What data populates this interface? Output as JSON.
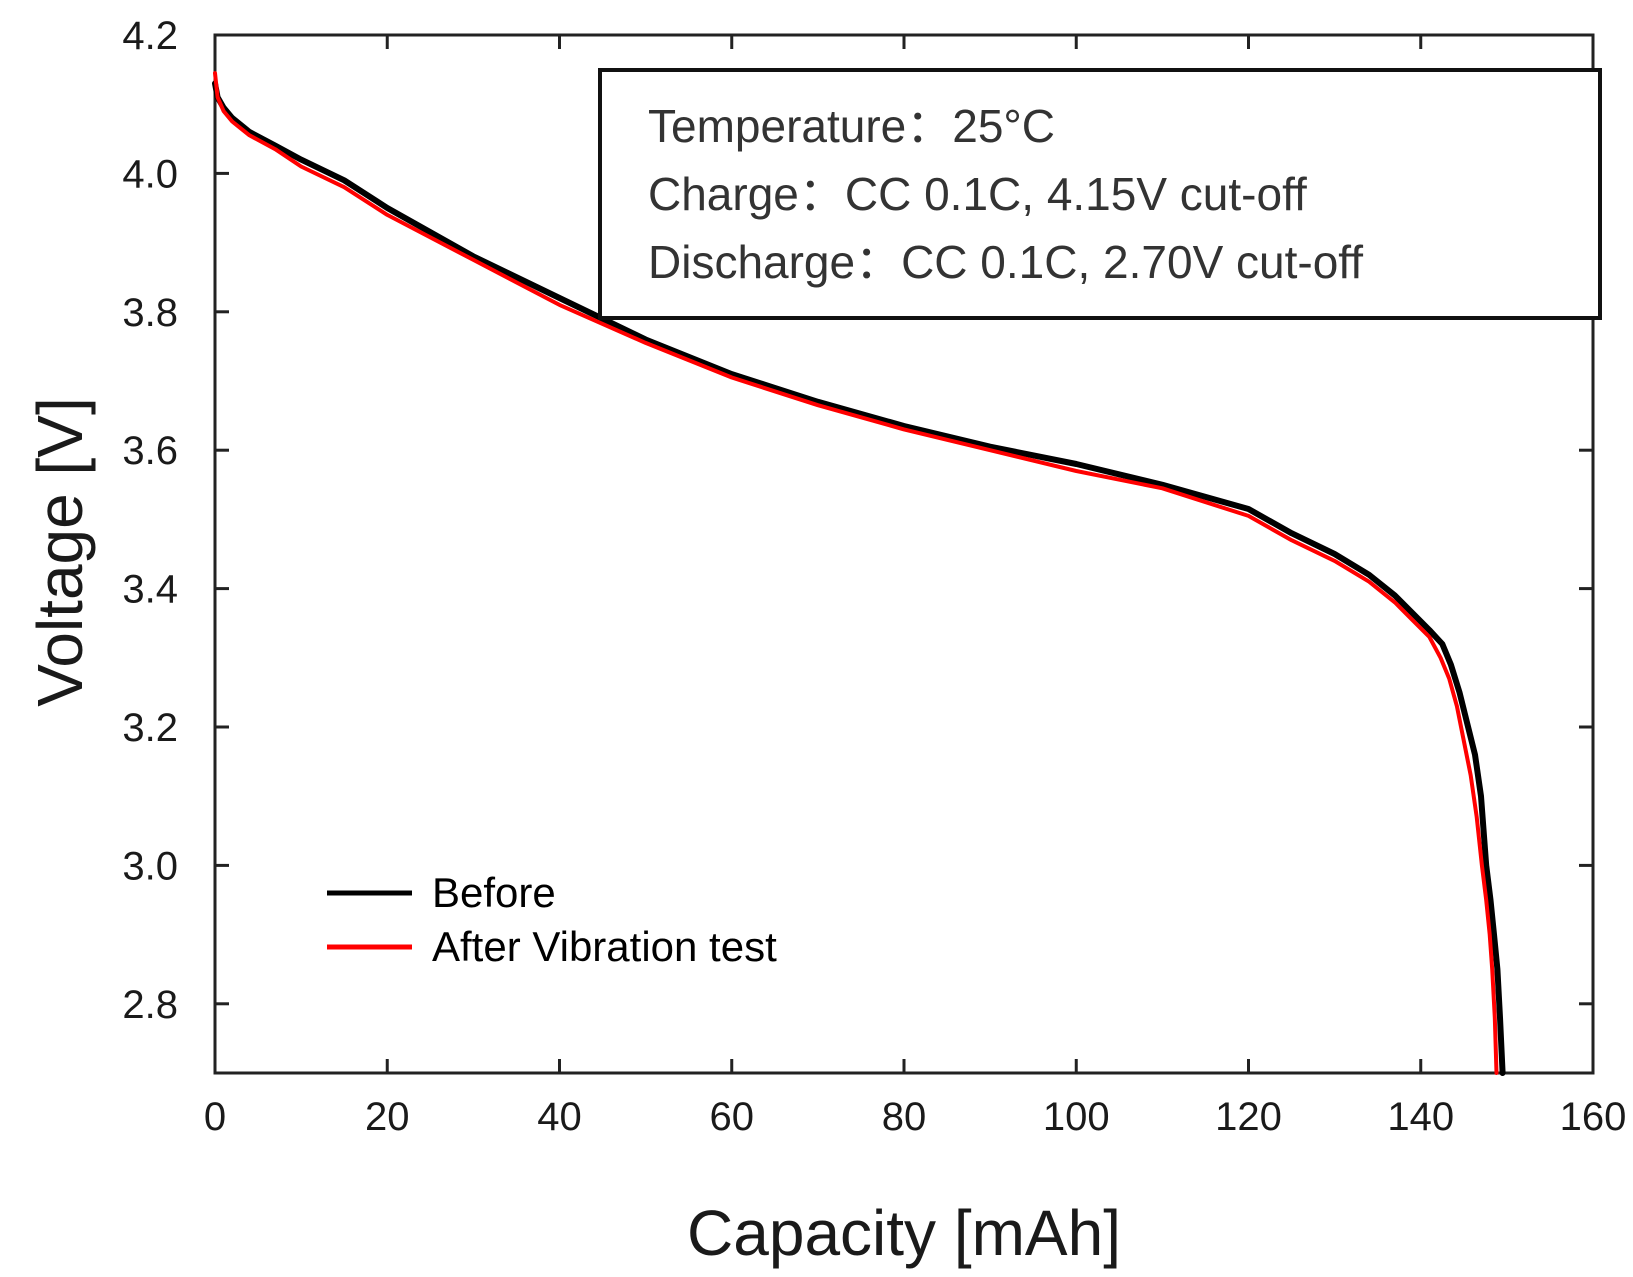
{
  "chart_data": {
    "type": "line",
    "title": "",
    "xlabel": "Capacity [mAh]",
    "ylabel": "Voltage [V]",
    "xlim": [
      0,
      160
    ],
    "ylim": [
      2.7,
      4.2
    ],
    "x_ticks": [
      0,
      20,
      40,
      60,
      80,
      100,
      120,
      140,
      160
    ],
    "x_tick_labels": [
      "0",
      "20",
      "40",
      "60",
      "80",
      "100",
      "120",
      "140",
      "160"
    ],
    "y_ticks": [
      2.8,
      3.0,
      3.2,
      3.4,
      3.6,
      3.8,
      4.0,
      4.2
    ],
    "y_tick_labels": [
      "2.8",
      "3.0",
      "3.2",
      "3.4",
      "3.6",
      "3.8",
      "4.0",
      "4.2"
    ],
    "grid": false,
    "legend_position": "bottom-left",
    "annotation": {
      "lines": [
        "Temperature：25°C",
        "Charge：CC 0.1C, 4.15V cut-off",
        "Discharge：CC 0.1C, 2.70V cut-off"
      ],
      "position": "top-right"
    },
    "series": [
      {
        "name": "Before",
        "color": "#000000",
        "x": [
          0,
          0.3,
          1,
          2,
          4,
          7,
          10,
          15,
          20,
          30,
          40,
          50,
          60,
          70,
          80,
          90,
          100,
          110,
          120,
          125,
          130,
          134,
          137,
          139,
          141,
          142.5,
          143.5,
          144.5,
          145.5,
          146.3,
          147,
          147.6,
          148.1,
          148.5,
          148.9,
          149.2,
          149.5
        ],
        "y": [
          4.13,
          4.11,
          4.095,
          4.08,
          4.06,
          4.04,
          4.02,
          3.99,
          3.95,
          3.88,
          3.82,
          3.76,
          3.71,
          3.67,
          3.635,
          3.605,
          3.58,
          3.55,
          3.515,
          3.48,
          3.45,
          3.42,
          3.39,
          3.365,
          3.34,
          3.32,
          3.29,
          3.25,
          3.2,
          3.16,
          3.1,
          3.0,
          2.95,
          2.9,
          2.85,
          2.78,
          2.7
        ]
      },
      {
        "name": "After Vibration test",
        "color": "#ff0000",
        "x": [
          0,
          0.3,
          1,
          2,
          4,
          7,
          10,
          15,
          20,
          30,
          40,
          50,
          60,
          70,
          80,
          90,
          100,
          110,
          120,
          125,
          130,
          134,
          137,
          139,
          141,
          142.3,
          143.3,
          144.2,
          145,
          145.8,
          146.5,
          147.1,
          147.6,
          148,
          148.3,
          148.6,
          148.8
        ],
        "y": [
          4.145,
          4.11,
          4.09,
          4.075,
          4.055,
          4.035,
          4.01,
          3.98,
          3.94,
          3.875,
          3.81,
          3.755,
          3.705,
          3.665,
          3.63,
          3.6,
          3.57,
          3.545,
          3.505,
          3.47,
          3.44,
          3.41,
          3.38,
          3.355,
          3.33,
          3.3,
          3.27,
          3.23,
          3.18,
          3.13,
          3.07,
          3.0,
          2.95,
          2.9,
          2.85,
          2.78,
          2.7
        ]
      }
    ]
  }
}
